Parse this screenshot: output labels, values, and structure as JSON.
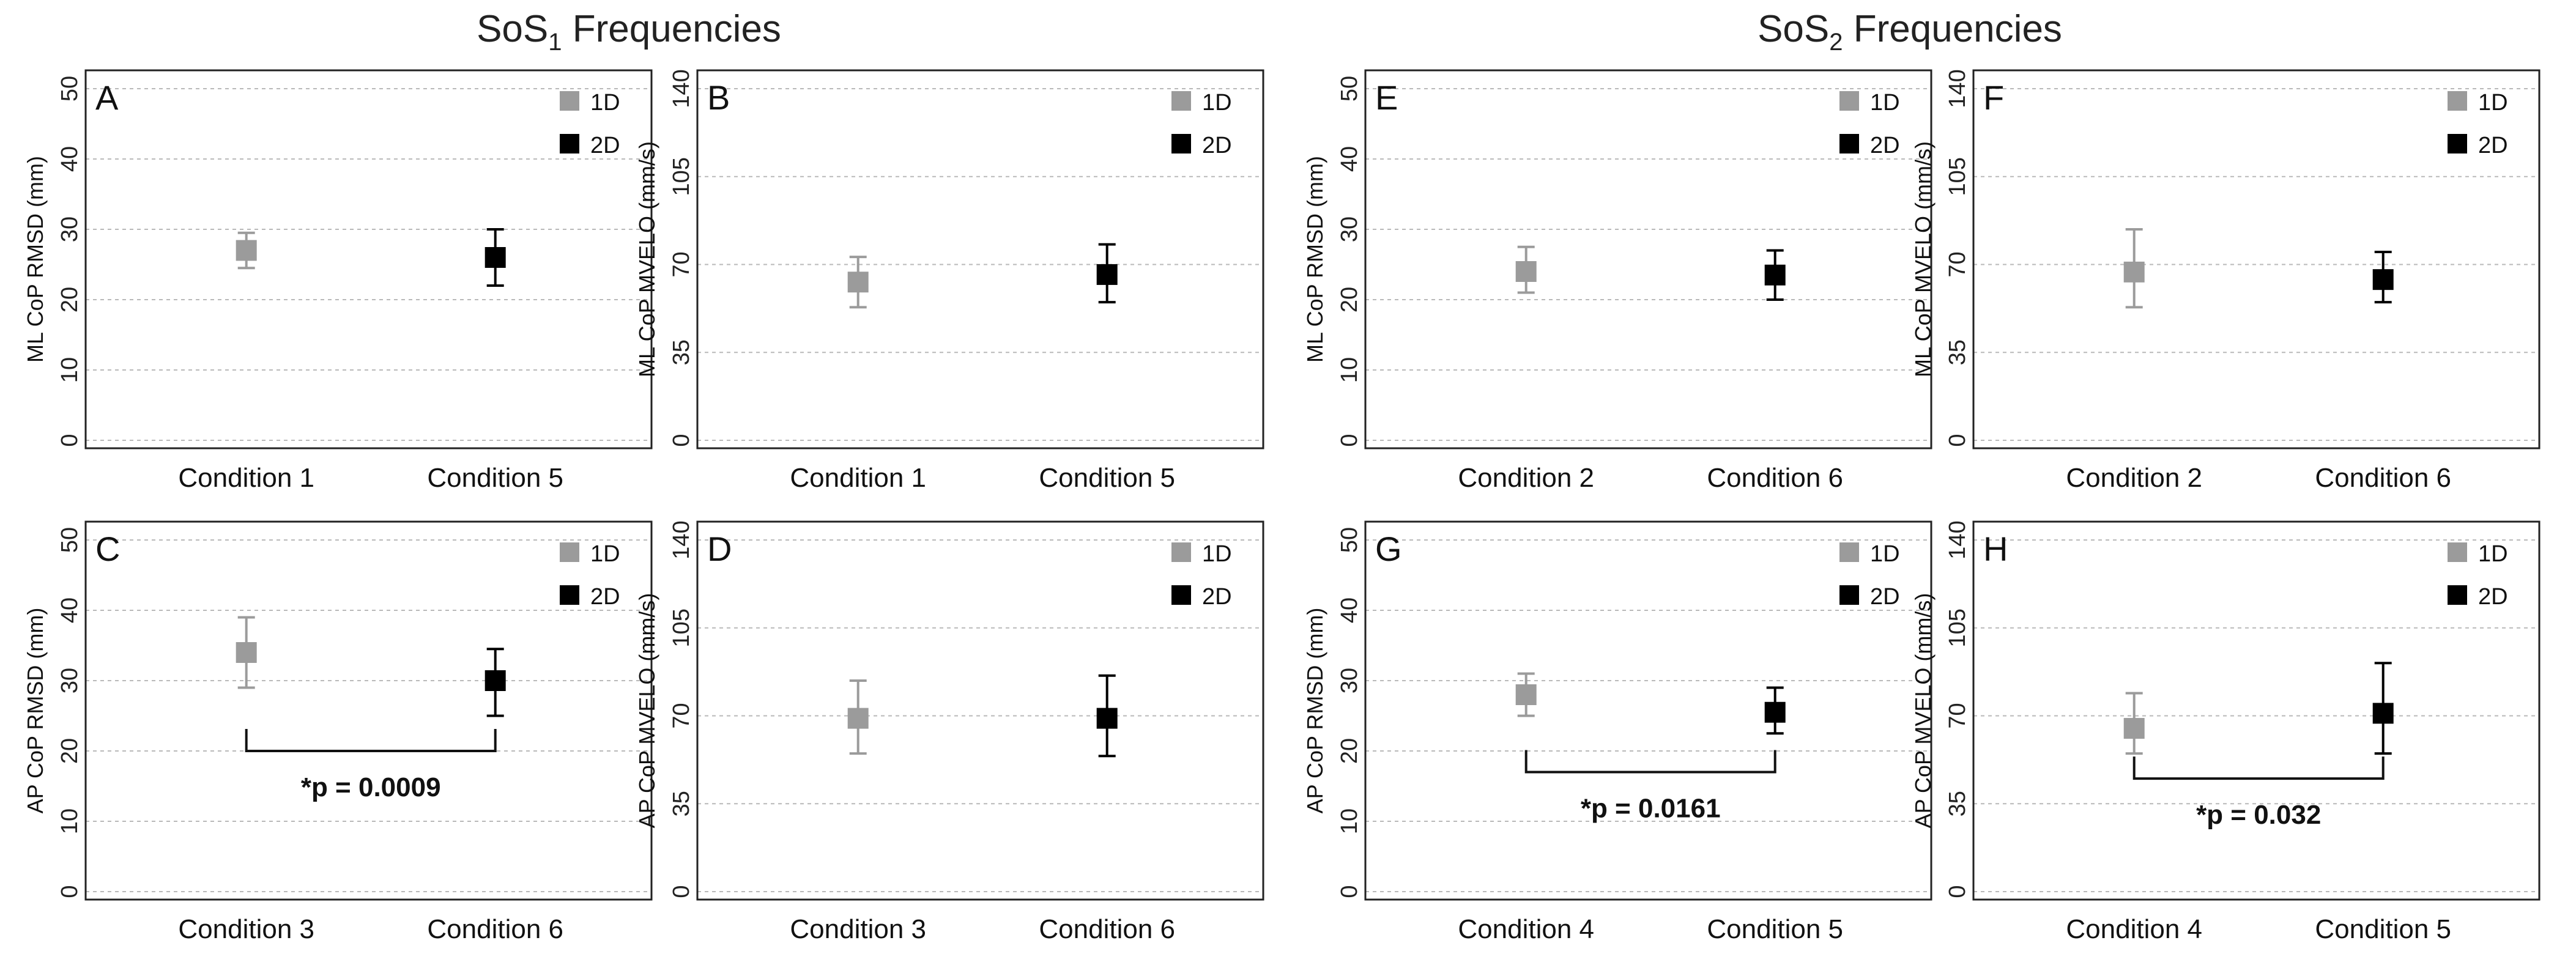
{
  "groups": [
    {
      "base": "SoS",
      "sub": "1",
      "rest": " Frequencies"
    },
    {
      "base": "SoS",
      "sub": "2",
      "rest": " Frequencies"
    }
  ],
  "legend": {
    "labels": [
      "1D",
      "2D"
    ],
    "colors": [
      "#9b9b9b",
      "#000000"
    ]
  },
  "chart_data": [
    {
      "panel": "A",
      "type": "scatter",
      "ylabel": "ML CoP RMSD (mm)",
      "ylim": [
        0,
        50
      ],
      "yticks": [
        0,
        10,
        20,
        30,
        40,
        50
      ],
      "categories": [
        "Condition 1",
        "Condition 5"
      ],
      "series": [
        {
          "name": "1D",
          "mean": 27,
          "lo": 24.5,
          "hi": 29.5
        },
        {
          "name": "2D",
          "mean": 26,
          "lo": 22,
          "hi": 30
        }
      ]
    },
    {
      "panel": "B",
      "type": "scatter",
      "ylabel": "ML CoP MVELO (mm/s)",
      "ylim": [
        0,
        140
      ],
      "yticks": [
        0,
        35,
        70,
        105,
        140
      ],
      "categories": [
        "Condition 1",
        "Condition 5"
      ],
      "series": [
        {
          "name": "1D",
          "mean": 63,
          "lo": 53,
          "hi": 73
        },
        {
          "name": "2D",
          "mean": 66,
          "lo": 55,
          "hi": 78
        }
      ]
    },
    {
      "panel": "C",
      "type": "scatter",
      "ylabel": "AP CoP RMSD (mm)",
      "ylim": [
        0,
        50
      ],
      "yticks": [
        0,
        10,
        20,
        30,
        40,
        50
      ],
      "categories": [
        "Condition 3",
        "Condition 6"
      ],
      "series": [
        {
          "name": "1D",
          "mean": 34,
          "lo": 29,
          "hi": 39
        },
        {
          "name": "2D",
          "mean": 30,
          "lo": 25,
          "hi": 34.5
        }
      ],
      "annotation": "*p = 0.0009",
      "bracket_y": 20
    },
    {
      "panel": "D",
      "type": "scatter",
      "ylabel": "AP CoP MVELO (mm/s)",
      "ylim": [
        0,
        140
      ],
      "yticks": [
        0,
        35,
        70,
        105,
        140
      ],
      "categories": [
        "Condition 3",
        "Condition 6"
      ],
      "series": [
        {
          "name": "1D",
          "mean": 69,
          "lo": 55,
          "hi": 84
        },
        {
          "name": "2D",
          "mean": 69,
          "lo": 54,
          "hi": 86
        }
      ]
    },
    {
      "panel": "E",
      "type": "scatter",
      "ylabel": "ML CoP RMSD (mm)",
      "ylim": [
        0,
        50
      ],
      "yticks": [
        0,
        10,
        20,
        30,
        40,
        50
      ],
      "categories": [
        "Condition 2",
        "Condition 6"
      ],
      "series": [
        {
          "name": "1D",
          "mean": 24,
          "lo": 21,
          "hi": 27.5
        },
        {
          "name": "2D",
          "mean": 23.5,
          "lo": 20,
          "hi": 27
        }
      ]
    },
    {
      "panel": "F",
      "type": "scatter",
      "ylabel": "ML CoP MVELO (mm/s)",
      "ylim": [
        0,
        140
      ],
      "yticks": [
        0,
        35,
        70,
        105,
        140
      ],
      "categories": [
        "Condition 2",
        "Condition 6"
      ],
      "series": [
        {
          "name": "1D",
          "mean": 67,
          "lo": 53,
          "hi": 84
        },
        {
          "name": "2D",
          "mean": 64,
          "lo": 55,
          "hi": 75
        }
      ]
    },
    {
      "panel": "G",
      "type": "scatter",
      "ylabel": "AP CoP RMSD (mm)",
      "ylim": [
        0,
        50
      ],
      "yticks": [
        0,
        10,
        20,
        30,
        40,
        50
      ],
      "categories": [
        "Condition 4",
        "Condition 5"
      ],
      "series": [
        {
          "name": "1D",
          "mean": 28,
          "lo": 25,
          "hi": 31
        },
        {
          "name": "2D",
          "mean": 25.5,
          "lo": 22.5,
          "hi": 29
        }
      ],
      "annotation": "*p = 0.0161",
      "bracket_y": 17
    },
    {
      "panel": "H",
      "type": "scatter",
      "ylabel": "AP CoP MVELO (mm/s)",
      "ylim": [
        0,
        140
      ],
      "yticks": [
        0,
        35,
        70,
        105,
        140
      ],
      "categories": [
        "Condition 4",
        "Condition 5"
      ],
      "series": [
        {
          "name": "1D",
          "mean": 65,
          "lo": 55,
          "hi": 79
        },
        {
          "name": "2D",
          "mean": 71,
          "lo": 55,
          "hi": 91
        }
      ],
      "annotation": "*p = 0.032",
      "bracket_y": 45
    }
  ]
}
